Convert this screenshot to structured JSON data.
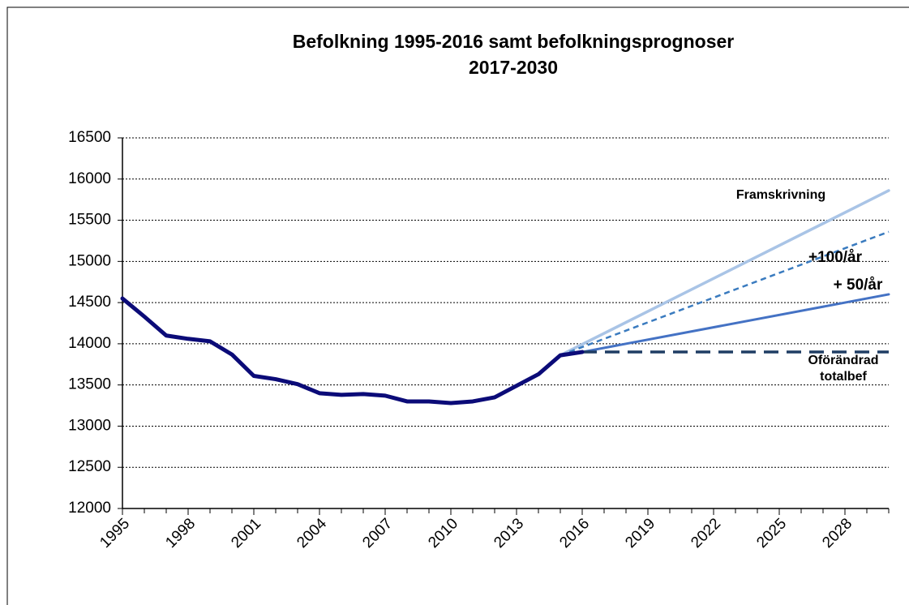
{
  "chart_data": {
    "type": "line",
    "title": "Befolkning 1995-2016 samt befolkningsprognoser 2017-2030",
    "xlim": [
      1995,
      2030
    ],
    "xticks": [
      1995,
      1998,
      2001,
      2004,
      2007,
      2010,
      2013,
      2016,
      2019,
      2022,
      2025,
      2028
    ],
    "ylim": [
      12000,
      16500
    ],
    "yticks": [
      12000,
      12500,
      13000,
      13500,
      14000,
      14500,
      15000,
      15500,
      16000,
      16500
    ],
    "grid": true,
    "series": [
      {
        "color": "#0b0b78",
        "x": [
          1995,
          1996,
          1997,
          1998,
          1999,
          2000,
          2001,
          2002,
          2003,
          2004,
          2005,
          2006,
          2007,
          2008,
          2009,
          2010,
          2011,
          2012,
          2013,
          2014,
          2015,
          2016
        ],
        "values": [
          14550,
          14330,
          14100,
          14060,
          14030,
          13870,
          13610,
          13570,
          13510,
          13400,
          13380,
          13390,
          13370,
          13300,
          13300,
          13280,
          13300,
          13350,
          13490,
          13630,
          13860,
          13900
        ]
      },
      {
        "name": "Framskrivning",
        "color": "#a9c4e6",
        "x": [
          2015,
          2030
        ],
        "values": [
          13860,
          15860
        ]
      },
      {
        "name": "+100/år",
        "color": "#3a7bbf",
        "style": "dashed",
        "x": [
          2015,
          2030
        ],
        "values": [
          13860,
          15360
        ]
      },
      {
        "name": "+ 50/år",
        "color": "#4472c4",
        "x": [
          2016,
          2030
        ],
        "values": [
          13900,
          14600
        ]
      },
      {
        "name": "Oförändrad totalbef",
        "color": "#1f3d64",
        "style": "dashed",
        "x": [
          2016,
          2030
        ],
        "values": [
          13900,
          13900
        ]
      }
    ]
  }
}
